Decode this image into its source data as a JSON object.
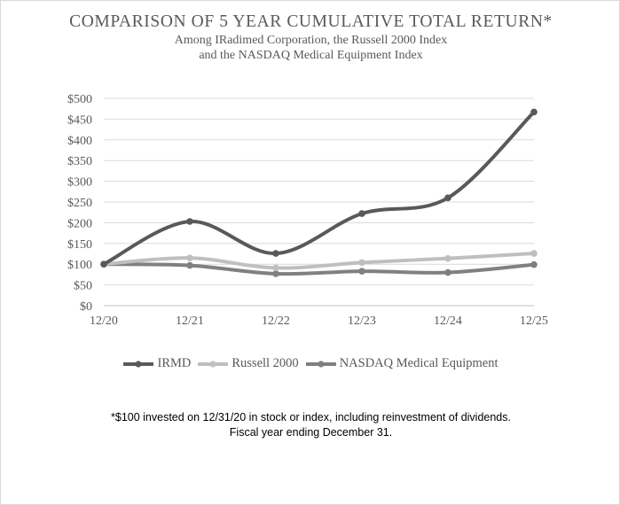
{
  "chart_data": {
    "type": "line",
    "title": "COMPARISON OF 5 YEAR CUMULATIVE TOTAL RETURN*",
    "subtitle_lines": [
      "Among IRadimed Corporation, the Russell 2000 Index",
      "and the NASDAQ Medical Equipment Index"
    ],
    "categories": [
      "12/20",
      "12/21",
      "12/22",
      "12/23",
      "12/24",
      "12/25"
    ],
    "y_ticks": [
      "$0",
      "$50",
      "$100",
      "$150",
      "$200",
      "$250",
      "$300",
      "$350",
      "$400",
      "$450",
      "$500"
    ],
    "ylim": [
      0,
      500
    ],
    "grid": true,
    "legend_position": "bottom",
    "series": [
      {
        "name": "IRMD",
        "color": "#595959",
        "values": [
          100,
          203,
          126,
          222,
          260,
          467
        ]
      },
      {
        "name": "Russell 2000",
        "color": "#bfbfbf",
        "values": [
          100,
          115,
          91,
          104,
          114,
          126
        ]
      },
      {
        "name": "NASDAQ Medical Equipment",
        "color": "#808080",
        "values": [
          100,
          97,
          77,
          83,
          80,
          99
        ]
      }
    ],
    "footnote_lines": [
      "*$100 invested on 12/31/20 in stock or index, including reinvestment  of dividends.",
      "Fiscal year ending December 31."
    ]
  }
}
